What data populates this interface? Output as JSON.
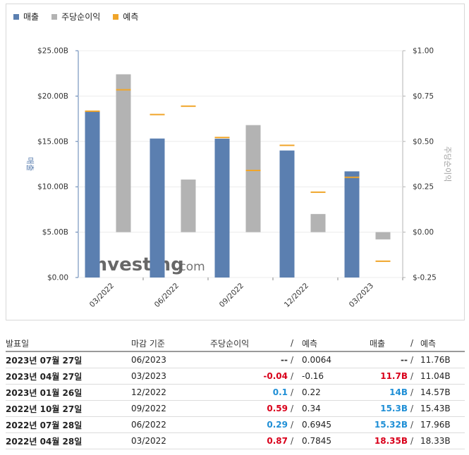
{
  "legend": [
    {
      "label": "매출",
      "color": "#5b7fb0"
    },
    {
      "label": "주당순이익",
      "color": "#b3b3b3"
    },
    {
      "label": "예측",
      "color": "#f0a52a"
    }
  ],
  "watermark": {
    "brand": "Investing",
    "suffix": ".com"
  },
  "chart_data": {
    "type": "bar",
    "categories": [
      "03/2022",
      "06/2022",
      "09/2022",
      "12/2022",
      "03/2023"
    ],
    "series": [
      {
        "name": "매출",
        "axis": "left",
        "unit": "B",
        "values": [
          18.35,
          15.32,
          15.3,
          14.0,
          11.7
        ],
        "color": "#5b7fb0"
      },
      {
        "name": "주당순이익",
        "axis": "right",
        "values": [
          0.87,
          0.29,
          0.59,
          0.1,
          -0.04
        ],
        "color": "#b3b3b3"
      },
      {
        "name": "예측",
        "kind": "revenue-forecast",
        "axis": "left",
        "values": [
          18.33,
          17.96,
          15.43,
          14.57,
          11.04
        ],
        "color": "#f0a52a"
      },
      {
        "name": "예측",
        "kind": "eps-forecast",
        "axis": "right",
        "values": [
          0.7845,
          0.6945,
          0.34,
          0.22,
          -0.16
        ],
        "color": "#f0a52a"
      }
    ],
    "y_left": {
      "label": "매출",
      "ticks": [
        "$25.00B",
        "$20.00B",
        "$15.00B",
        "$10.00B",
        "$5.00B",
        "$0.00"
      ],
      "range": [
        0,
        25
      ]
    },
    "y_right": {
      "label": "주당순이익",
      "ticks": [
        "$1.00",
        "$0.75",
        "$0.50",
        "$0.25",
        "$0.00",
        "$-0.25"
      ],
      "range": [
        -0.25,
        1.0
      ]
    },
    "legend_position": "top-left"
  },
  "table": {
    "headers": {
      "date": "발표일",
      "period": "마감 기준",
      "eps": "주당순이익",
      "eps_fc": "예측",
      "rev": "매출",
      "rev_fc": "예측",
      "slash": "/"
    },
    "rows": [
      {
        "date": "2023년 07월 27일",
        "period": "06/2023",
        "eps": "--",
        "eps_color": "dark",
        "eps_fc": "0.0064",
        "rev": "--",
        "rev_color": "dark",
        "rev_fc": "11.76B"
      },
      {
        "date": "2023년 04월 27일",
        "period": "03/2023",
        "eps": "-0.04",
        "eps_color": "red",
        "eps_fc": "-0.16",
        "rev": "11.7B",
        "rev_color": "red",
        "rev_fc": "11.04B"
      },
      {
        "date": "2023년 01월 26일",
        "period": "12/2022",
        "eps": "0.1",
        "eps_color": "blue",
        "eps_fc": "0.22",
        "rev": "14B",
        "rev_color": "blue",
        "rev_fc": "14.57B"
      },
      {
        "date": "2022년 10월 27일",
        "period": "09/2022",
        "eps": "0.59",
        "eps_color": "red",
        "eps_fc": "0.34",
        "rev": "15.3B",
        "rev_color": "blue",
        "rev_fc": "15.43B"
      },
      {
        "date": "2022년 07월 28일",
        "period": "06/2022",
        "eps": "0.29",
        "eps_color": "blue",
        "eps_fc": "0.6945",
        "rev": "15.32B",
        "rev_color": "blue",
        "rev_fc": "17.96B"
      },
      {
        "date": "2022년 04월 28일",
        "period": "03/2022",
        "eps": "0.87",
        "eps_color": "red",
        "eps_fc": "0.7845",
        "rev": "18.35B",
        "rev_color": "red",
        "rev_fc": "18.33B"
      }
    ]
  }
}
